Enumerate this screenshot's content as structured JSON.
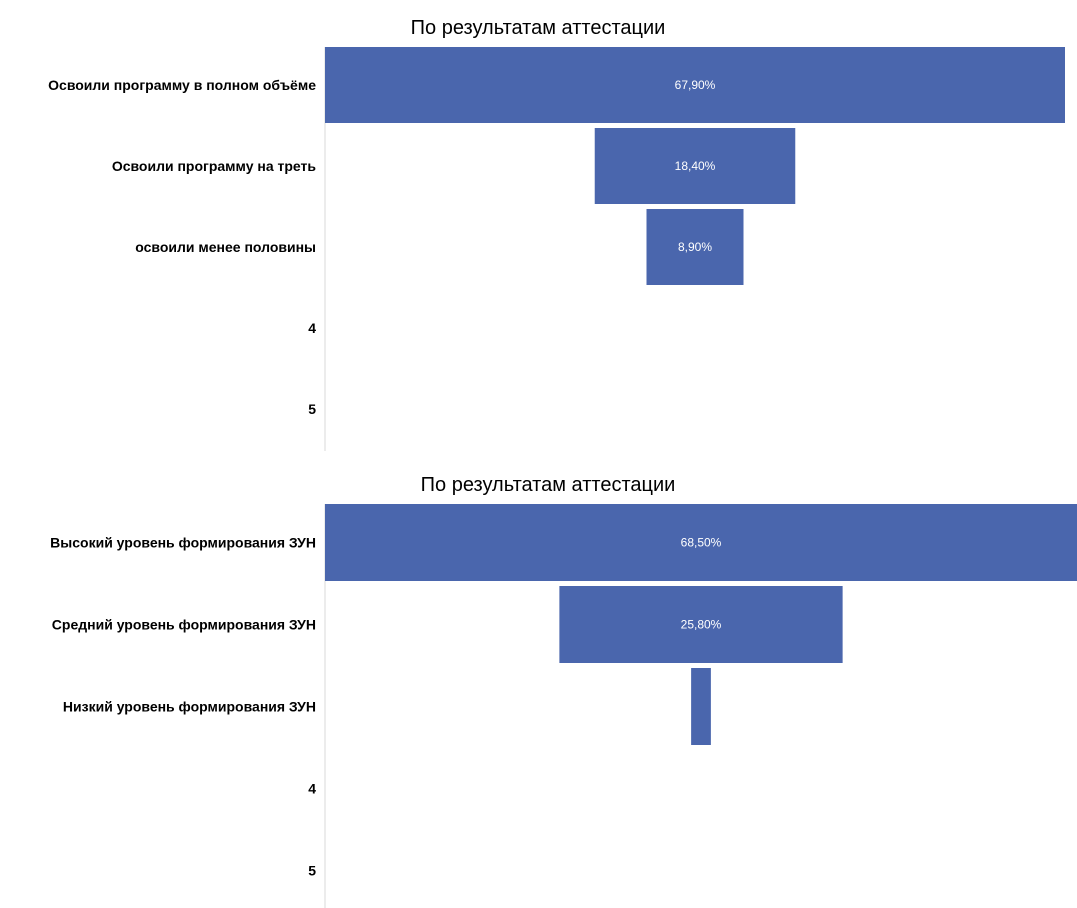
{
  "chart_data": [
    {
      "type": "funnel",
      "title": "По результатам аттестации",
      "categories": [
        "Освоили программу в полном объёме",
        "Освоили программу на треть",
        "освоили менее половины",
        "4",
        "5"
      ],
      "values": [
        67.9,
        18.4,
        8.9,
        null,
        null
      ],
      "data_labels": [
        "67,90%",
        "18,40%",
        "8,90%",
        "",
        ""
      ],
      "bar_color": "#4a66ad",
      "label_color": "#ffffff",
      "value_max": 67.9
    },
    {
      "type": "funnel",
      "title": "По результатам аттестации",
      "categories": [
        "Высокий уровень формирования ЗУН",
        "Средний уровень формирования ЗУН",
        "Низкий уровень формирования ЗУН",
        "4",
        "5"
      ],
      "values": [
        68.5,
        25.8,
        1.8,
        null,
        null
      ],
      "data_labels": [
        "68,50%",
        "25,80%",
        "",
        "",
        ""
      ],
      "bar_color": "#4a66ad",
      "label_color": "#ffffff",
      "value_max": 68.5
    }
  ]
}
